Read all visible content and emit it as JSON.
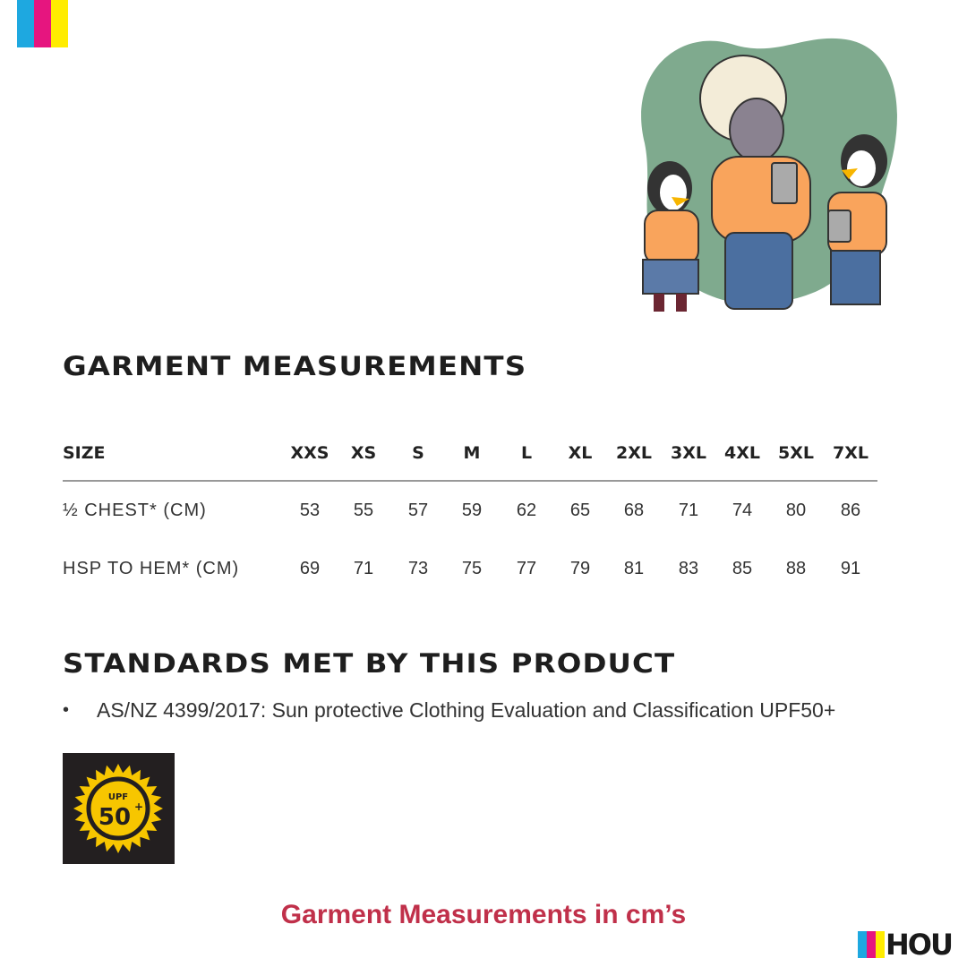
{
  "brand": {
    "colors": [
      "#1ea8e0",
      "#e6157f",
      "#ffec00"
    ],
    "logo_text": "HOU"
  },
  "title": "GARMENT MEASUREMENTS",
  "table": {
    "header_label": "SIZE",
    "sizes": [
      "XXS",
      "XS",
      "S",
      "M",
      "L",
      "XL",
      "2XL",
      "3XL",
      "4XL",
      "5XL",
      "7XL"
    ],
    "rows": [
      {
        "label": "½ CHEST* (CM)",
        "values": [
          "53",
          "55",
          "57",
          "59",
          "62",
          "65",
          "68",
          "71",
          "74",
          "80",
          "86"
        ]
      },
      {
        "label": "HSP TO HEM* (CM)",
        "values": [
          "69",
          "71",
          "73",
          "75",
          "77",
          "79",
          "81",
          "83",
          "85",
          "88",
          "91"
        ]
      }
    ]
  },
  "standards": {
    "title": "STANDARDS MET BY THIS PRODUCT",
    "items": [
      "AS/NZ 4399/2017: Sun protective Clothing Evaluation and Classification UPF50+"
    ],
    "badge": {
      "top": "UPF",
      "value": "50",
      "sup": "+",
      "bg": "#231f20",
      "color": "#f7c600"
    }
  },
  "footer": "Garment Measurements in cm’s",
  "illustration": {
    "bg": "#7faa8e"
  }
}
